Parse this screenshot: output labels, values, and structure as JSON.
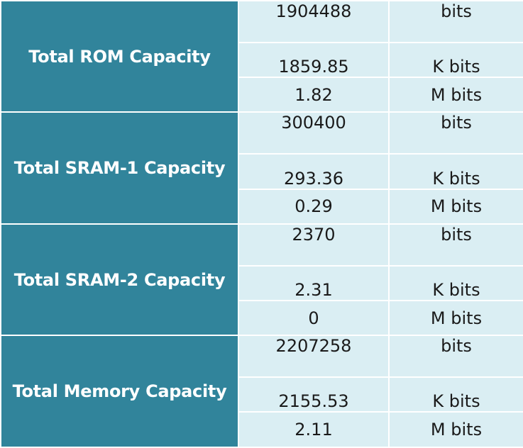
{
  "groups": [
    {
      "label": "Total ROM Capacity",
      "rows": [
        {
          "value": "1904488",
          "unit": "bits"
        },
        {
          "value": "1859.85",
          "unit": "K bits"
        },
        {
          "value": "1.82",
          "unit": "M bits"
        }
      ]
    },
    {
      "label": "Total SRAM-1 Capacity",
      "rows": [
        {
          "value": "300400",
          "unit": "bits"
        },
        {
          "value": "293.36",
          "unit": "K bits"
        },
        {
          "value": "0.29",
          "unit": "M bits"
        }
      ]
    },
    {
      "label": "Total SRAM-2 Capacity",
      "rows": [
        {
          "value": "2370",
          "unit": "bits"
        },
        {
          "value": "2.31",
          "unit": "K bits"
        },
        {
          "value": "0",
          "unit": "M bits"
        }
      ]
    },
    {
      "label": "Total Memory Capacity",
      "rows": [
        {
          "value": "2207258",
          "unit": "bits"
        },
        {
          "value": "2155.53",
          "unit": "K bits"
        },
        {
          "value": "2.11",
          "unit": "M bits"
        }
      ]
    }
  ],
  "colors": {
    "label_background": "#31849b",
    "cell_background": "#daeef3",
    "border": "#ffffff"
  }
}
